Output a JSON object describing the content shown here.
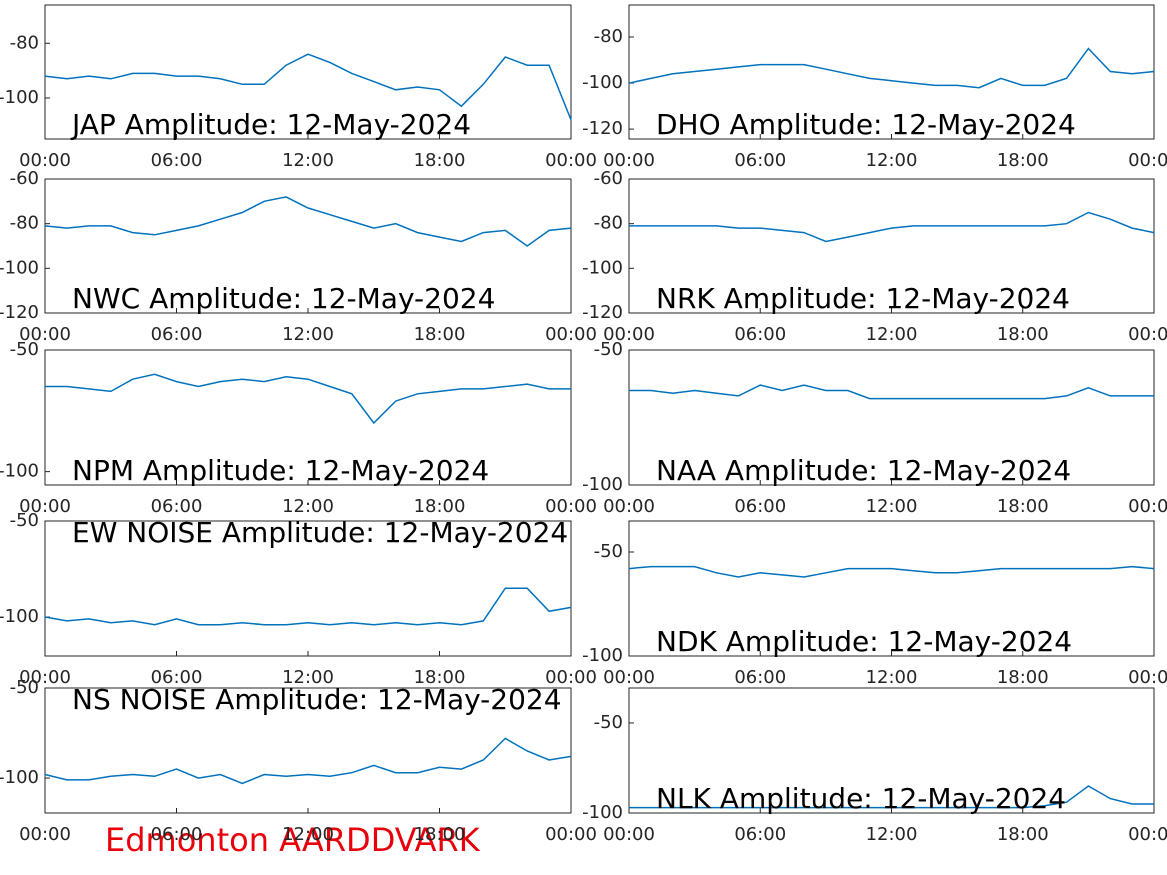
{
  "chart_data": [
    {
      "type": "line",
      "title": "JAP Amplitude: 12-May-2024",
      "color": "#0072bd",
      "x": [
        0,
        1,
        2,
        3,
        4,
        5,
        6,
        7,
        8,
        9,
        10,
        11,
        12,
        13,
        14,
        15,
        16,
        17,
        18,
        19,
        20,
        21,
        22,
        23,
        24
      ],
      "values": [
        -92,
        -93,
        -92,
        -93,
        -91,
        -91,
        -92,
        -92,
        -93,
        -95,
        -95,
        -88,
        -84,
        -87,
        -91,
        -94,
        -97,
        -96,
        -97,
        -103,
        -95,
        -85,
        -88,
        -88,
        -108
      ],
      "xlim": [
        0,
        24
      ],
      "ylim": [
        -115,
        -66
      ],
      "xticks": [
        {
          "value": 0,
          "label": "00:00"
        },
        {
          "value": 6,
          "label": "06:00"
        },
        {
          "value": 12,
          "label": "12:00"
        },
        {
          "value": 18,
          "label": "18:00"
        },
        {
          "value": 24,
          "label": "00:00"
        }
      ],
      "yticks": [
        -80,
        -100
      ]
    },
    {
      "type": "line",
      "title": "DHO Amplitude: 12-May-2024",
      "color": "#0072bd",
      "x": [
        0,
        1,
        2,
        3,
        4,
        5,
        6,
        7,
        8,
        9,
        10,
        11,
        12,
        13,
        14,
        15,
        16,
        17,
        18,
        19,
        20,
        21,
        22,
        23,
        24
      ],
      "values": [
        -100,
        -98,
        -96,
        -95,
        -94,
        -93,
        -92,
        -92,
        -92,
        -94,
        -96,
        -98,
        -99,
        -100,
        -101,
        -101,
        -102,
        -98,
        -101,
        -101,
        -98,
        -85,
        -95,
        -96,
        -95
      ],
      "xlim": [
        0,
        24
      ],
      "ylim": [
        -124.3,
        -66.1
      ],
      "xticks": [
        {
          "value": 0,
          "label": "00:00"
        },
        {
          "value": 6,
          "label": "06:00"
        },
        {
          "value": 12,
          "label": "12:00"
        },
        {
          "value": 18,
          "label": "18:00"
        },
        {
          "value": 24,
          "label": "00:00"
        }
      ],
      "yticks": [
        -80,
        -100,
        -120
      ]
    },
    {
      "type": "line",
      "title": "NWC Amplitude: 12-May-2024",
      "color": "#0072bd",
      "x": [
        0,
        1,
        2,
        3,
        4,
        5,
        6,
        7,
        8,
        9,
        10,
        11,
        12,
        13,
        14,
        15,
        16,
        17,
        18,
        19,
        20,
        21,
        22,
        23,
        24
      ],
      "values": [
        -81,
        -82,
        -81,
        -81,
        -84,
        -85,
        -83,
        -81,
        -78,
        -75,
        -70,
        -68,
        -73,
        -76,
        -79,
        -82,
        -80,
        -84,
        -86,
        -88,
        -84,
        -83,
        -90,
        -83,
        -82
      ],
      "xlim": [
        0,
        24
      ],
      "ylim": [
        -120,
        -60
      ],
      "xticks": [
        {
          "value": 0,
          "label": "00:00"
        },
        {
          "value": 6,
          "label": "06:00"
        },
        {
          "value": 12,
          "label": "12:00"
        },
        {
          "value": 18,
          "label": "18:00"
        },
        {
          "value": 24,
          "label": "00:00"
        }
      ],
      "yticks": [
        -60,
        -80,
        -100,
        -120
      ]
    },
    {
      "type": "line",
      "title": "NRK Amplitude: 12-May-2024",
      "color": "#0072bd",
      "x": [
        0,
        1,
        2,
        3,
        4,
        5,
        6,
        7,
        8,
        9,
        10,
        11,
        12,
        13,
        14,
        15,
        16,
        17,
        18,
        19,
        20,
        21,
        22,
        23,
        24
      ],
      "values": [
        -81,
        -81,
        -81,
        -81,
        -81,
        -82,
        -82,
        -83,
        -84,
        -88,
        -86,
        -84,
        -82,
        -81,
        -81,
        -81,
        -81,
        -81,
        -81,
        -81,
        -80,
        -75,
        -78,
        -82,
        -84
      ],
      "xlim": [
        0,
        24
      ],
      "ylim": [
        -120,
        -60
      ],
      "xticks": [
        {
          "value": 0,
          "label": "00:00"
        },
        {
          "value": 6,
          "label": "06:00"
        },
        {
          "value": 12,
          "label": "12:00"
        },
        {
          "value": 18,
          "label": "18:00"
        },
        {
          "value": 24,
          "label": "00:00"
        }
      ],
      "yticks": [
        -60,
        -80,
        -100,
        -120
      ]
    },
    {
      "type": "line",
      "title": "NPM Amplitude: 12-May-2024",
      "color": "#0072bd",
      "x": [
        0,
        1,
        2,
        3,
        4,
        5,
        6,
        7,
        8,
        9,
        10,
        11,
        12,
        13,
        14,
        15,
        16,
        17,
        18,
        19,
        20,
        21,
        22,
        23,
        24
      ],
      "values": [
        -65,
        -65,
        -66,
        -67,
        -62,
        -60,
        -63,
        -65,
        -63,
        -62,
        -63,
        -61,
        -62,
        -65,
        -68,
        -80,
        -71,
        -68,
        -67,
        -66,
        -66,
        -65,
        -64,
        -66,
        -66
      ],
      "xlim": [
        0,
        24
      ],
      "ylim": [
        -105.5,
        -50
      ],
      "xticks": [
        {
          "value": 0,
          "label": "00:00"
        },
        {
          "value": 6,
          "label": "06:00"
        },
        {
          "value": 12,
          "label": "12:00"
        },
        {
          "value": 18,
          "label": "18:00"
        },
        {
          "value": 24,
          "label": "00:00"
        }
      ],
      "yticks": [
        -50,
        -100
      ]
    },
    {
      "type": "line",
      "title": "NAA Amplitude: 12-May-2024",
      "color": "#0072bd",
      "x": [
        0,
        1,
        2,
        3,
        4,
        5,
        6,
        7,
        8,
        9,
        10,
        11,
        12,
        13,
        14,
        15,
        16,
        17,
        18,
        19,
        20,
        21,
        22,
        23,
        24
      ],
      "values": [
        -65,
        -65,
        -66,
        -65,
        -66,
        -67,
        -63,
        -65,
        -63,
        -65,
        -65,
        -68,
        -68,
        -68,
        -68,
        -68,
        -68,
        -68,
        -68,
        -68,
        -67,
        -64,
        -67,
        -67,
        -67
      ],
      "xlim": [
        0,
        24
      ],
      "ylim": [
        -100,
        -50
      ],
      "xticks": [
        {
          "value": 0,
          "label": "00:00"
        },
        {
          "value": 6,
          "label": "06:00"
        },
        {
          "value": 12,
          "label": "12:00"
        },
        {
          "value": 18,
          "label": "18:00"
        },
        {
          "value": 24,
          "label": "00:00"
        }
      ],
      "yticks": [
        -50,
        -100
      ]
    },
    {
      "type": "line",
      "title": "EW NOISE Amplitude: 12-May-2024",
      "color": "#0072bd",
      "x": [
        0,
        1,
        2,
        3,
        4,
        5,
        6,
        7,
        8,
        9,
        10,
        11,
        12,
        13,
        14,
        15,
        16,
        17,
        18,
        19,
        20,
        21,
        22,
        23,
        24
      ],
      "values": [
        -100,
        -102,
        -101,
        -103,
        -102,
        -104,
        -101,
        -104,
        -104,
        -103,
        -104,
        -104,
        -103,
        -104,
        -103,
        -104,
        -103,
        -104,
        -103,
        -104,
        -102,
        -85,
        -85,
        -97,
        -95
      ],
      "xlim": [
        0,
        24
      ],
      "ylim": [
        -120.3,
        -50
      ],
      "xticks": [
        {
          "value": 0,
          "label": "00:00"
        },
        {
          "value": 6,
          "label": "06:00"
        },
        {
          "value": 12,
          "label": "12:00"
        },
        {
          "value": 18,
          "label": "18:00"
        },
        {
          "value": 24,
          "label": "00:00"
        }
      ],
      "yticks": [
        -50,
        -100
      ]
    },
    {
      "type": "line",
      "title": "NDK Amplitude: 12-May-2024",
      "color": "#0072bd",
      "x": [
        0,
        1,
        2,
        3,
        4,
        5,
        6,
        7,
        8,
        9,
        10,
        11,
        12,
        13,
        14,
        15,
        16,
        17,
        18,
        19,
        20,
        21,
        22,
        23,
        24
      ],
      "values": [
        -58,
        -57,
        -57,
        -57,
        -60,
        -62,
        -60,
        -61,
        -62,
        -60,
        -58,
        -58,
        -58,
        -59,
        -60,
        -60,
        -59,
        -58,
        -58,
        -58,
        -58,
        -58,
        -58,
        -57,
        -58
      ],
      "xlim": [
        0,
        24
      ],
      "ylim": [
        -100,
        -35.1
      ],
      "xticks": [
        {
          "value": 0,
          "label": "00:00"
        },
        {
          "value": 6,
          "label": "06:00"
        },
        {
          "value": 12,
          "label": "12:00"
        },
        {
          "value": 18,
          "label": "18:00"
        },
        {
          "value": 24,
          "label": "00:00"
        }
      ],
      "yticks": [
        -50,
        -100
      ]
    },
    {
      "type": "line",
      "title": "NS NOISE Amplitude: 12-May-2024",
      "color": "#0072bd",
      "x": [
        0,
        1,
        2,
        3,
        4,
        5,
        6,
        7,
        8,
        9,
        10,
        11,
        12,
        13,
        14,
        15,
        16,
        17,
        18,
        19,
        20,
        21,
        22,
        23,
        24
      ],
      "values": [
        -98,
        -101,
        -101,
        -99,
        -98,
        -99,
        -95,
        -100,
        -98,
        -103,
        -98,
        -99,
        -98,
        -99,
        -97,
        -93,
        -97,
        -97,
        -94,
        -95,
        -90,
        -78,
        -85,
        -90,
        -88
      ],
      "xlim": [
        0,
        24
      ],
      "ylim": [
        -119.4,
        -50
      ],
      "xticks": [
        {
          "value": 0,
          "label": "00:00"
        },
        {
          "value": 6,
          "label": "06:00"
        },
        {
          "value": 12,
          "label": "12:00"
        },
        {
          "value": 18,
          "label": "18:00"
        },
        {
          "value": 24,
          "label": "00:00"
        }
      ],
      "yticks": [
        -50,
        -100
      ]
    },
    {
      "type": "line",
      "title": "NLK Amplitude: 12-May-2024",
      "color": "#0072bd",
      "x": [
        0,
        1,
        2,
        3,
        4,
        5,
        6,
        7,
        8,
        9,
        10,
        11,
        12,
        13,
        14,
        15,
        16,
        17,
        18,
        19,
        20,
        21,
        22,
        23,
        24
      ],
      "values": [
        -97,
        -97,
        -97,
        -97,
        -97,
        -97,
        -97,
        -97,
        -97,
        -97,
        -97,
        -97,
        -97,
        -97,
        -97,
        -97,
        -97,
        -97,
        -97,
        -96,
        -94,
        -85,
        -92,
        -95,
        -95
      ],
      "xlim": [
        0,
        24
      ],
      "ylim": [
        -100,
        -30.6
      ],
      "xticks": [
        {
          "value": 0,
          "label": "00:00"
        },
        {
          "value": 6,
          "label": "06:00"
        },
        {
          "value": 12,
          "label": "12:00"
        },
        {
          "value": 18,
          "label": "18:00"
        },
        {
          "value": 24,
          "label": "00:00"
        }
      ],
      "yticks": [
        -50,
        -100
      ]
    }
  ],
  "footer": "Edmonton AARDDVARK"
}
